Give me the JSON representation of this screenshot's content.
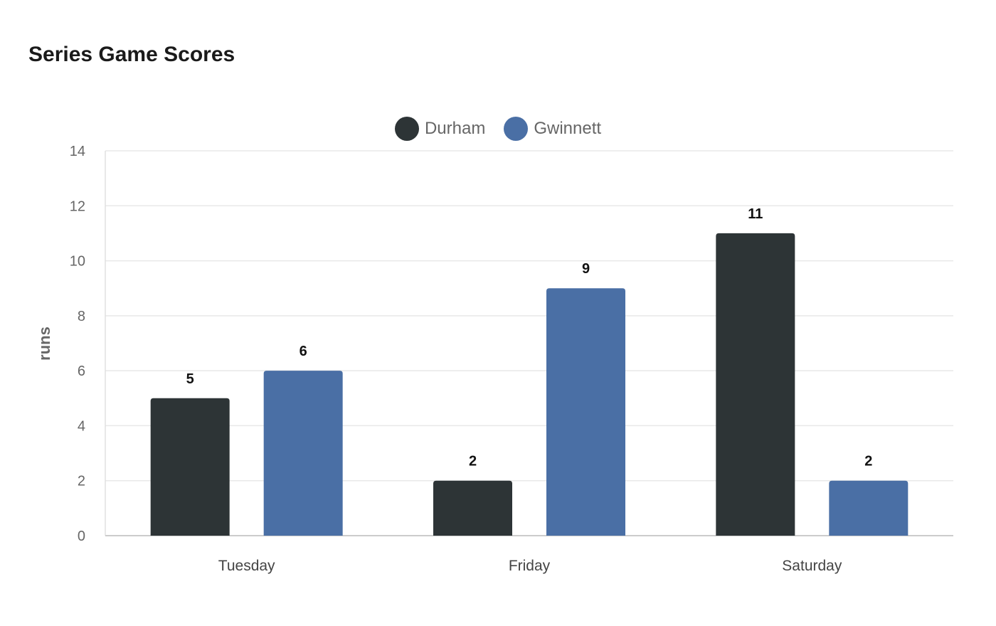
{
  "chart_data": {
    "type": "bar",
    "title": "Series Game Scores",
    "xlabel": "",
    "ylabel": "runs",
    "categories": [
      "Tuesday",
      "Friday",
      "Saturday"
    ],
    "series": [
      {
        "name": "Durham",
        "color": "#2d3436",
        "values": [
          5,
          2,
          11
        ]
      },
      {
        "name": "Gwinnett",
        "color": "#4a6fa5",
        "values": [
          6,
          9,
          2
        ]
      }
    ],
    "ylim": [
      0,
      14
    ],
    "yticks": [
      0,
      2,
      4,
      6,
      8,
      10,
      12,
      14
    ],
    "grid": true,
    "legend_position": "top-center"
  }
}
